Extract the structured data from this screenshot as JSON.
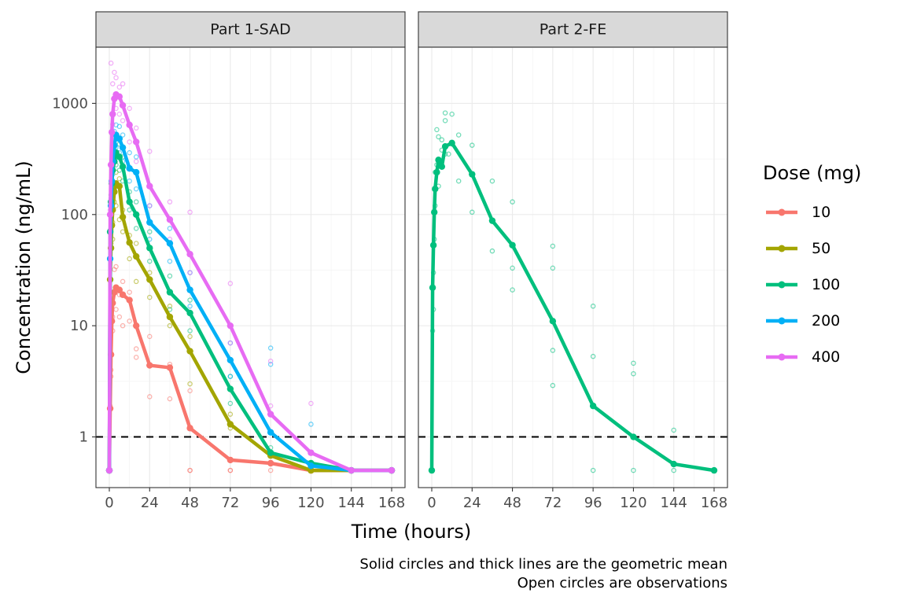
{
  "chart_data": {
    "type": "line",
    "panels": [
      "Part 1-SAD",
      "Part 2-FE"
    ],
    "xlabel": "Time (hours)",
    "ylabel": "Concentration (ng/mL)",
    "y_scale": "log10",
    "xlim": [
      0,
      168
    ],
    "ylim": [
      0.35,
      3200
    ],
    "x_ticks": [
      0,
      24,
      48,
      72,
      96,
      120,
      144,
      168
    ],
    "x_tick_labels": [
      "0",
      "24",
      "48",
      "72",
      "96",
      "120",
      "144",
      "168"
    ],
    "y_ticks": [
      1,
      10,
      100,
      1000
    ],
    "y_tick_labels": [
      "1",
      "10",
      "100",
      "1000"
    ],
    "reference_line": {
      "y": 1,
      "style": "dashed"
    },
    "legend": {
      "title": "Dose (mg)",
      "placement": "right"
    },
    "caption": [
      "Solid circles and thick lines are the geometric mean",
      "Open circles are observations"
    ],
    "grid": true,
    "series": [
      {
        "name": "10",
        "panel": "Part 1-SAD",
        "color": "#F8766D",
        "x": [
          0,
          0.5,
          1,
          1.5,
          2,
          3,
          4,
          6,
          8,
          12,
          16,
          24,
          36,
          48,
          72,
          96,
          120,
          144,
          168
        ],
        "y": [
          0.5,
          1.8,
          5.5,
          11,
          16,
          20,
          22,
          21,
          19,
          17,
          10,
          4.4,
          4.2,
          1.2,
          0.62,
          0.58,
          0.5,
          0.5,
          0.5
        ]
      },
      {
        "name": "50",
        "panel": "Part 1-SAD",
        "color": "#A3A500",
        "x": [
          0,
          0.5,
          1,
          1.5,
          2,
          3,
          4,
          6,
          8,
          12,
          16,
          24,
          36,
          48,
          72,
          96,
          120,
          144,
          168
        ],
        "y": [
          0.5,
          26,
          50,
          80,
          110,
          160,
          190,
          180,
          95,
          56,
          42,
          26,
          12,
          5.9,
          1.3,
          0.68,
          0.5,
          0.5,
          0.5
        ]
      },
      {
        "name": "100",
        "panel": "Part 1-SAD",
        "color": "#00BF7D",
        "x": [
          0,
          0.5,
          1,
          1.5,
          2,
          3,
          4,
          6,
          8,
          12,
          16,
          24,
          36,
          48,
          72,
          96,
          120,
          144,
          168
        ],
        "y": [
          0.5,
          70,
          130,
          190,
          250,
          300,
          360,
          330,
          270,
          130,
          100,
          50,
          20,
          13,
          2.7,
          0.72,
          0.58,
          0.5,
          0.5
        ]
      },
      {
        "name": "200",
        "panel": "Part 1-SAD",
        "color": "#00B0F6",
        "x": [
          0,
          0.5,
          1,
          1.5,
          2,
          3,
          4,
          6,
          8,
          12,
          16,
          24,
          36,
          48,
          72,
          96,
          120,
          144,
          168
        ],
        "y": [
          0.5,
          40,
          120,
          200,
          300,
          420,
          520,
          480,
          400,
          260,
          240,
          85,
          55,
          21,
          4.9,
          1.1,
          0.55,
          0.5,
          0.5
        ]
      },
      {
        "name": "400",
        "panel": "Part 1-SAD",
        "color": "#E76BF3",
        "x": [
          0,
          0.5,
          1,
          1.5,
          2,
          3,
          4,
          6,
          8,
          12,
          16,
          24,
          36,
          48,
          72,
          96,
          120,
          144,
          168
        ],
        "y": [
          0.5,
          100,
          280,
          550,
          800,
          1100,
          1200,
          1150,
          960,
          640,
          450,
          180,
          90,
          44,
          10,
          1.6,
          0.72,
          0.5,
          0.5
        ]
      },
      {
        "name": "100",
        "panel": "Part 2-FE",
        "color": "#00BF7D",
        "x": [
          0,
          0.5,
          1,
          1.5,
          2,
          3,
          4,
          6,
          8,
          12,
          24,
          36,
          48,
          72,
          96,
          120,
          144,
          168
        ],
        "y": [
          0.5,
          22,
          53,
          105,
          170,
          240,
          310,
          270,
          410,
          440,
          230,
          88,
          53,
          11,
          1.9,
          1.0,
          0.57,
          0.5
        ]
      }
    ]
  },
  "observations": [
    {
      "panel": "Part 1-SAD",
      "dose": "10",
      "x": [
        0.5,
        1,
        1,
        2,
        2,
        3,
        4,
        4,
        6,
        6,
        8,
        8,
        12,
        12,
        16,
        16,
        24,
        24,
        36,
        36,
        48,
        48,
        48,
        72,
        72,
        96,
        120,
        120
      ],
      "y": [
        1.9,
        4,
        3.5,
        12,
        9,
        32,
        34,
        14,
        19,
        12,
        25,
        10,
        20,
        11,
        6.2,
        5.2,
        8,
        2.3,
        4.5,
        2.2,
        2.6,
        0.5,
        0.5,
        0.5,
        0.5,
        0.5,
        0.5,
        0.5
      ]
    },
    {
      "panel": "Part 1-SAD",
      "dose": "50",
      "x": [
        0.5,
        1,
        2,
        2,
        3,
        4,
        4,
        6,
        6,
        8,
        8,
        12,
        12,
        16,
        16,
        24,
        24,
        36,
        36,
        48,
        48,
        72,
        72,
        96
      ],
      "y": [
        26,
        55,
        85,
        60,
        130,
        240,
        120,
        210,
        90,
        110,
        70,
        65,
        40,
        55,
        25,
        30,
        18,
        15,
        10,
        8,
        3,
        1.6,
        1.2,
        0.7
      ]
    },
    {
      "panel": "Part 1-SAD",
      "dose": "100",
      "x": [
        0.5,
        1,
        2,
        2,
        3,
        4,
        4,
        6,
        6,
        8,
        8,
        12,
        12,
        16,
        16,
        24,
        24,
        36,
        36,
        48,
        48,
        72,
        72,
        96,
        120
      ],
      "y": [
        72,
        150,
        280,
        180,
        400,
        480,
        280,
        430,
        250,
        330,
        200,
        160,
        110,
        130,
        75,
        70,
        38,
        28,
        14,
        17,
        9,
        3.5,
        2,
        0.8,
        0.55
      ]
    },
    {
      "panel": "Part 1-SAD",
      "dose": "200",
      "x": [
        0.5,
        1,
        2,
        2,
        3,
        4,
        4,
        6,
        6,
        8,
        8,
        12,
        12,
        16,
        16,
        24,
        24,
        36,
        36,
        48,
        48,
        72,
        72,
        96,
        96,
        120
      ],
      "y": [
        40,
        140,
        350,
        230,
        560,
        640,
        400,
        620,
        360,
        520,
        300,
        360,
        200,
        330,
        170,
        120,
        60,
        75,
        38,
        30,
        15,
        7,
        3.5,
        6.3,
        4.5,
        1.3
      ]
    },
    {
      "panel": "Part 1-SAD",
      "dose": "400",
      "x": [
        0.5,
        1,
        2,
        2,
        3,
        4,
        4,
        6,
        6,
        8,
        8,
        12,
        12,
        16,
        16,
        24,
        24,
        36,
        36,
        48,
        48,
        72,
        72,
        96,
        96,
        120
      ],
      "y": [
        110,
        2300,
        1500,
        650,
        1900,
        1700,
        900,
        1400,
        800,
        1500,
        700,
        900,
        450,
        600,
        300,
        370,
        120,
        130,
        60,
        105,
        30,
        24,
        7,
        4.8,
        1.9,
        2
      ]
    },
    {
      "panel": "Part 2-FE",
      "dose": "100",
      "x": [
        0.5,
        1,
        1,
        1.5,
        2,
        2,
        3,
        3,
        4,
        4,
        6,
        6,
        8,
        8,
        8,
        10,
        12,
        12,
        16,
        16,
        24,
        24,
        36,
        36,
        48,
        48,
        48,
        72,
        72,
        72,
        72,
        96,
        96,
        96,
        120,
        120,
        120,
        144,
        144
      ],
      "y": [
        9,
        14,
        30,
        60,
        120,
        240,
        580,
        280,
        500,
        180,
        470,
        380,
        820,
        700,
        350,
        350,
        800,
        430,
        520,
        200,
        420,
        105,
        200,
        47,
        130,
        33,
        21,
        52,
        33,
        6,
        2.9,
        15,
        5.3,
        0.5,
        4.6,
        3.7,
        0.5,
        1.15,
        0.5
      ]
    }
  ]
}
